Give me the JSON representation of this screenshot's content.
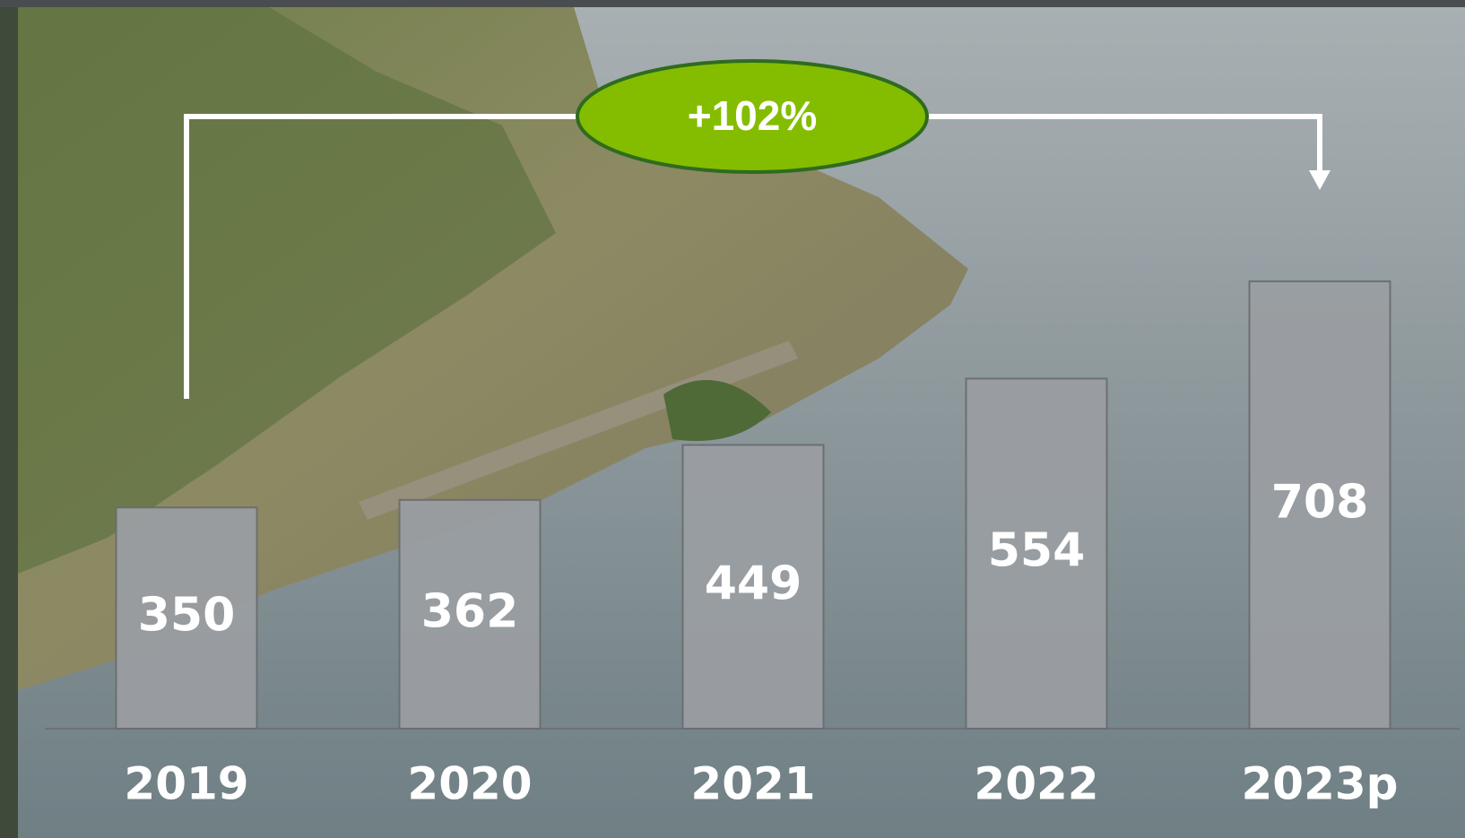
{
  "chart_data": {
    "type": "bar",
    "categories": [
      "2019",
      "2020",
      "2021",
      "2022",
      "2023p"
    ],
    "values": [
      350,
      362,
      449,
      554,
      708
    ],
    "color": "#9a9ea2",
    "annotation": "+102%"
  }
}
